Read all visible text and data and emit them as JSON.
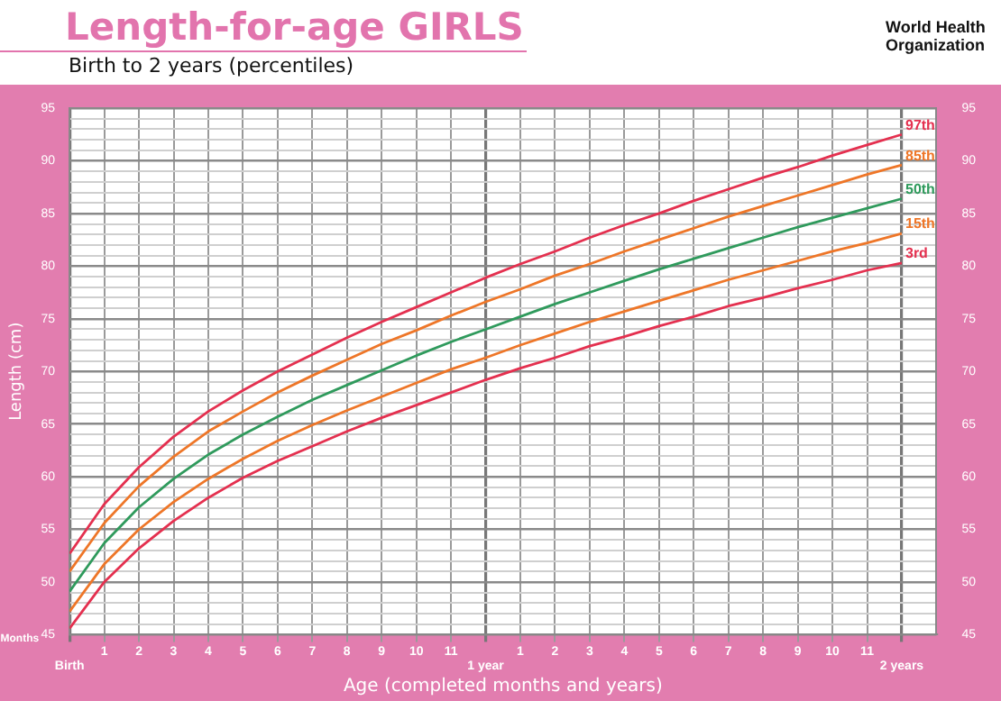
{
  "chart_data": {
    "type": "line",
    "title": "Length-for-age GIRLS",
    "subtitle": "Birth to 2 years (percentiles)",
    "xlabel": "Age (completed months and years)",
    "ylabel": "Length (cm)",
    "annotations": [
      "Months",
      "World Health Organization"
    ],
    "categories": [
      "Birth",
      "1",
      "2",
      "3",
      "4",
      "5",
      "6",
      "7",
      "8",
      "9",
      "10",
      "11",
      "1 year",
      "1",
      "2",
      "3",
      "4",
      "5",
      "6",
      "7",
      "8",
      "9",
      "10",
      "11",
      "2 years"
    ],
    "ylim": [
      45,
      95
    ],
    "yticks": [
      45,
      {
        "value": 46,
        "label": null
      },
      {
        "value": 47,
        "label": null
      },
      {
        "value": 48,
        "label": null
      },
      {
        "value": 49,
        "label": null
      },
      50,
      {
        "value": 51,
        "label": null
      },
      {
        "value": 52,
        "label": null
      },
      {
        "value": 53,
        "label": null
      },
      {
        "value": 54,
        "label": null
      },
      55,
      {
        "value": 56,
        "label": null
      },
      {
        "value": 57,
        "label": null
      },
      {
        "value": 58,
        "label": null
      },
      {
        "value": 59,
        "label": null
      },
      60,
      {
        "value": 61,
        "label": null
      },
      {
        "value": 62,
        "label": null
      },
      {
        "value": 63,
        "label": null
      },
      {
        "value": 64,
        "label": null
      },
      65,
      {
        "value": 66,
        "label": null
      },
      {
        "value": 67,
        "label": null
      },
      {
        "value": 68,
        "label": null
      },
      {
        "value": 69,
        "label": null
      },
      70,
      {
        "value": 71,
        "label": null
      },
      {
        "value": 72,
        "label": null
      },
      {
        "value": 73,
        "label": null
      },
      {
        "value": 74,
        "label": null
      },
      75,
      {
        "value": 76,
        "label": null
      },
      {
        "value": 77,
        "label": null
      },
      {
        "value": 78,
        "label": null
      },
      {
        "value": 79,
        "label": null
      },
      80,
      {
        "value": 81,
        "label": null
      },
      {
        "value": 82,
        "label": null
      },
      {
        "value": 83,
        "label": null
      },
      {
        "value": 84,
        "label": null
      },
      85,
      {
        "value": 86,
        "label": null
      },
      {
        "value": 87,
        "label": null
      },
      {
        "value": 88,
        "label": null
      },
      {
        "value": 89,
        "label": null
      },
      90,
      {
        "value": 91,
        "label": null
      },
      {
        "value": 92,
        "label": null
      },
      {
        "value": 93,
        "label": null
      },
      {
        "value": 94,
        "label": null
      },
      95
    ],
    "y2lim": [
      45,
      95
    ],
    "y2ticks": [
      45,
      50,
      55,
      60,
      65,
      70,
      75,
      80,
      85,
      90,
      95
    ],
    "grid": true,
    "legend": false,
    "marker": "none",
    "line_style": "solid",
    "series": [
      {
        "name": "97th",
        "color": "#e4304f",
        "values": [
          52.7,
          57.4,
          60.9,
          63.8,
          66.2,
          68.2,
          70.0,
          71.6,
          73.2,
          74.7,
          76.1,
          77.5,
          78.9,
          80.2,
          81.4,
          82.7,
          83.9,
          85.0,
          86.2,
          87.3,
          88.4,
          89.4,
          90.5,
          91.5,
          92.5
        ]
      },
      {
        "name": "85th",
        "color": "#ee7628",
        "values": [
          51.0,
          55.6,
          59.1,
          61.9,
          64.3,
          66.2,
          68.0,
          69.6,
          71.1,
          72.6,
          73.9,
          75.3,
          76.6,
          77.8,
          79.1,
          80.2,
          81.4,
          82.5,
          83.6,
          84.7,
          85.7,
          86.7,
          87.7,
          88.7,
          89.6
        ]
      },
      {
        "name": "50th",
        "color": "#2f9a5c",
        "values": [
          49.1,
          53.7,
          57.1,
          59.8,
          62.1,
          64.0,
          65.7,
          67.3,
          68.7,
          70.1,
          71.5,
          72.8,
          74.0,
          75.2,
          76.4,
          77.5,
          78.6,
          79.7,
          80.7,
          81.7,
          82.7,
          83.7,
          84.6,
          85.5,
          86.4
        ]
      },
      {
        "name": "15th",
        "color": "#ee7628",
        "values": [
          47.2,
          51.7,
          55.0,
          57.6,
          59.8,
          61.7,
          63.4,
          64.9,
          66.3,
          67.6,
          68.9,
          70.2,
          71.3,
          72.5,
          73.6,
          74.7,
          75.7,
          76.7,
          77.7,
          78.7,
          79.6,
          80.5,
          81.4,
          82.2,
          83.1
        ]
      },
      {
        "name": "3rd",
        "color": "#e4304f",
        "values": [
          45.6,
          50.0,
          53.2,
          55.8,
          58.0,
          59.9,
          61.5,
          62.9,
          64.3,
          65.6,
          66.8,
          68.0,
          69.2,
          70.3,
          71.3,
          72.4,
          73.3,
          74.3,
          75.2,
          76.2,
          77.0,
          77.9,
          78.7,
          79.6,
          80.3
        ]
      }
    ]
  }
}
